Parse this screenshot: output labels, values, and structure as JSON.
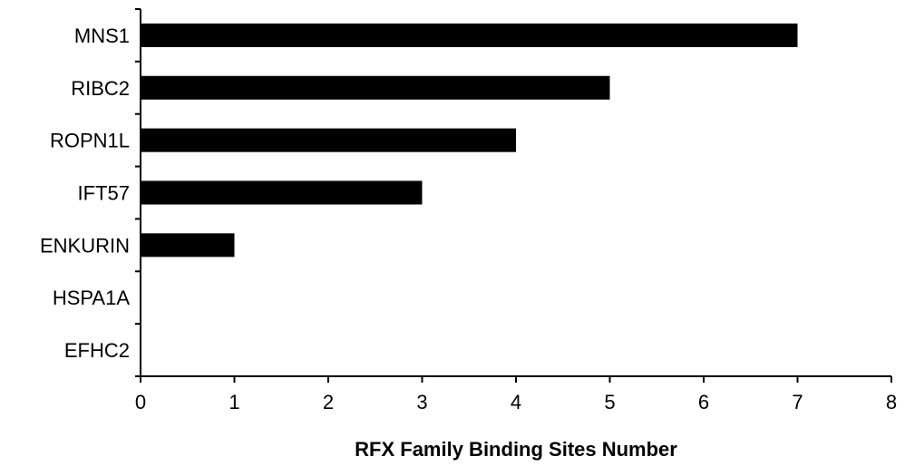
{
  "chart_data": {
    "type": "bar",
    "orientation": "horizontal",
    "title": "",
    "xlabel": "RFX Family Binding Sites Number",
    "ylabel": "",
    "categories": [
      "MNS1",
      "RIBC2",
      "ROPN1L",
      "IFT57",
      "ENKURIN",
      "HSPA1A",
      "EFHC2"
    ],
    "values": [
      7,
      5,
      4,
      3,
      1,
      0,
      0
    ],
    "xlim": [
      0,
      8
    ],
    "xticks": [
      "0",
      "1",
      "2",
      "3",
      "4",
      "5",
      "6",
      "7",
      "8"
    ],
    "grid": false,
    "legend": "none",
    "bar_color": "#000000"
  }
}
